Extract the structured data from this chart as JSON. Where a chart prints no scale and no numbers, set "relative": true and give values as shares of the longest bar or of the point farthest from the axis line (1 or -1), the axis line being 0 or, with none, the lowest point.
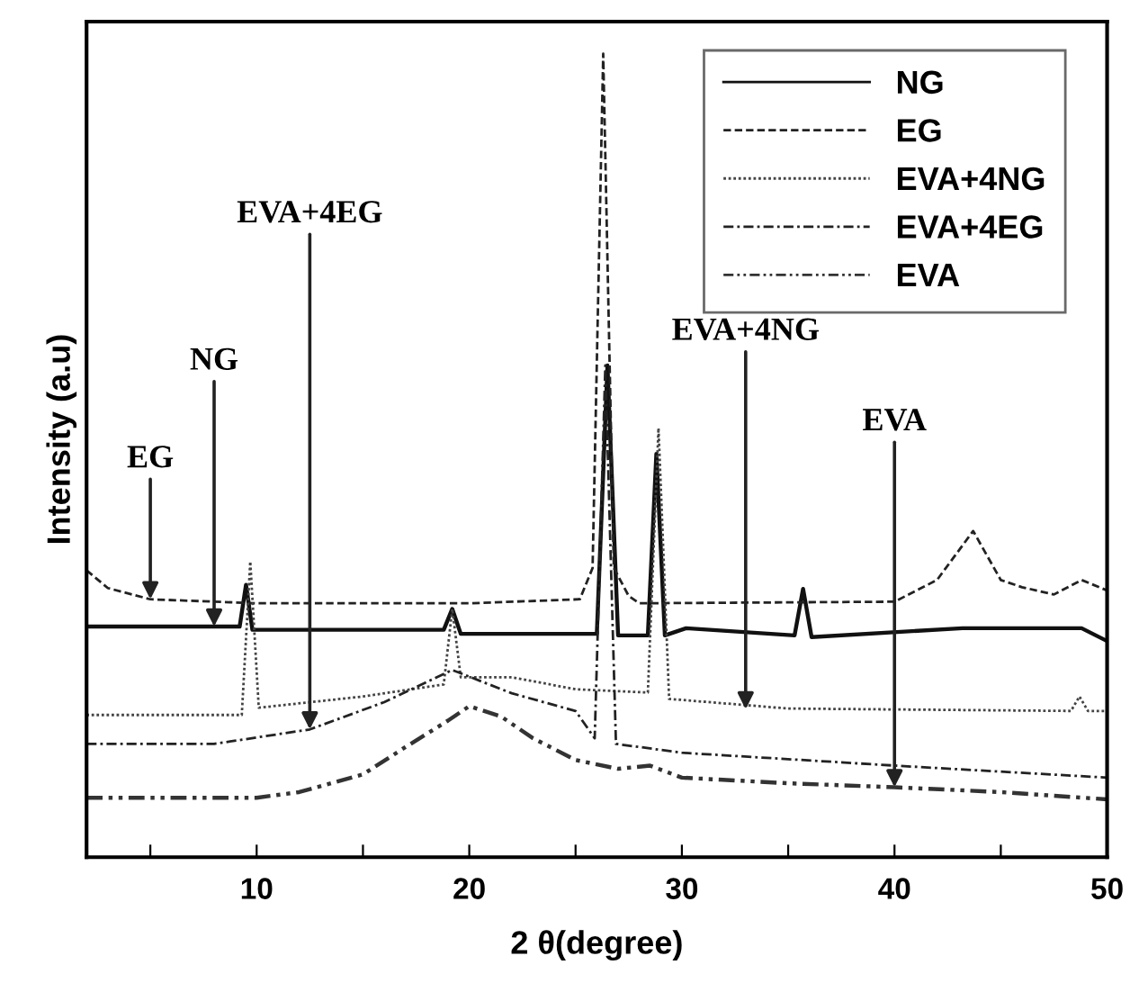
{
  "chart_data": {
    "type": "line",
    "relative": true,
    "xlabel": "2 θ(degree)",
    "ylabel": "Intensity (a.u)",
    "xlim": [
      2,
      50
    ],
    "xticks": [
      {
        "value": 5,
        "label": null
      },
      10,
      {
        "value": 15,
        "label": null
      },
      20,
      {
        "value": 25,
        "label": null
      },
      30,
      {
        "value": 35,
        "label": null
      },
      40,
      {
        "value": 45,
        "label": null
      },
      50
    ],
    "legend": "top right",
    "grid": false,
    "marker": "none",
    "series": [
      {
        "name": "NG",
        "color": "#111111",
        "line_style": "solid",
        "x": [
          2,
          9.2,
          9.5,
          9.8,
          18.8,
          19.2,
          19.6,
          26.0,
          26.5,
          27.0,
          28.4,
          28.8,
          29.2,
          30.2,
          35.3,
          35.7,
          36.1,
          43.2,
          48.8,
          50
        ],
        "values": [
          0.287,
          0.287,
          0.339,
          0.283,
          0.283,
          0.309,
          0.278,
          0.278,
          0.612,
          0.276,
          0.276,
          0.502,
          0.276,
          0.285,
          0.276,
          0.334,
          0.274,
          0.285,
          0.285,
          0.269
        ]
      },
      {
        "name": "EG",
        "color": "#222222",
        "line_style": "dashed",
        "x": [
          2,
          3,
          5,
          10,
          20,
          25.2,
          25.8,
          26.3,
          26.8,
          27.5,
          28,
          40,
          42,
          43.7,
          45,
          46,
          47.5,
          48.8,
          50
        ],
        "values": [
          0.357,
          0.335,
          0.321,
          0.316,
          0.316,
          0.321,
          0.36,
          1.0,
          0.36,
          0.325,
          0.316,
          0.318,
          0.345,
          0.406,
          0.345,
          0.336,
          0.327,
          0.345,
          0.332
        ]
      },
      {
        "name": "EVA+4NG",
        "color": "#444444",
        "line_style": "dotted",
        "x": [
          2,
          9.3,
          9.7,
          10.1,
          15,
          18.8,
          19.2,
          19.6,
          22,
          25,
          28.4,
          28.9,
          29.4,
          35,
          48.3,
          48.7,
          49.1,
          50
        ],
        "values": [
          0.177,
          0.177,
          0.368,
          0.186,
          0.2,
          0.215,
          0.309,
          0.224,
          0.224,
          0.209,
          0.205,
          0.534,
          0.197,
          0.185,
          0.182,
          0.2,
          0.182,
          0.182
        ]
      },
      {
        "name": "EVA+4EG",
        "color": "#222222",
        "line_style": "dashdot",
        "x": [
          2,
          8,
          12.5,
          16,
          19.2,
          22,
          25,
          25.9,
          26.4,
          26.9,
          30,
          40,
          50
        ],
        "values": [
          0.141,
          0.141,
          0.159,
          0.193,
          0.233,
          0.204,
          0.182,
          0.148,
          0.612,
          0.141,
          0.13,
          0.114,
          0.099
        ]
      },
      {
        "name": "EVA",
        "color": "#333333",
        "line_style": "dashdotdot",
        "x": [
          2,
          10,
          12,
          15,
          17,
          19,
          20,
          21.5,
          23,
          25,
          27,
          28.5,
          30,
          35,
          40,
          45,
          50
        ],
        "values": [
          0.074,
          0.074,
          0.081,
          0.103,
          0.137,
          0.17,
          0.188,
          0.175,
          0.148,
          0.121,
          0.11,
          0.114,
          0.099,
          0.092,
          0.087,
          0.081,
          0.072
        ]
      }
    ],
    "annotations": [
      {
        "text": "EG",
        "x": 5,
        "y": 0.321
      },
      {
        "text": "NG",
        "x": 8,
        "y": 0.287
      },
      {
        "text": "EVA+4EG",
        "x": 12.5,
        "y": 0.159
      },
      {
        "text": "EVA+4NG",
        "x": 33,
        "y": 0.184
      },
      {
        "text": "EVA",
        "x": 40,
        "y": 0.087
      }
    ]
  }
}
